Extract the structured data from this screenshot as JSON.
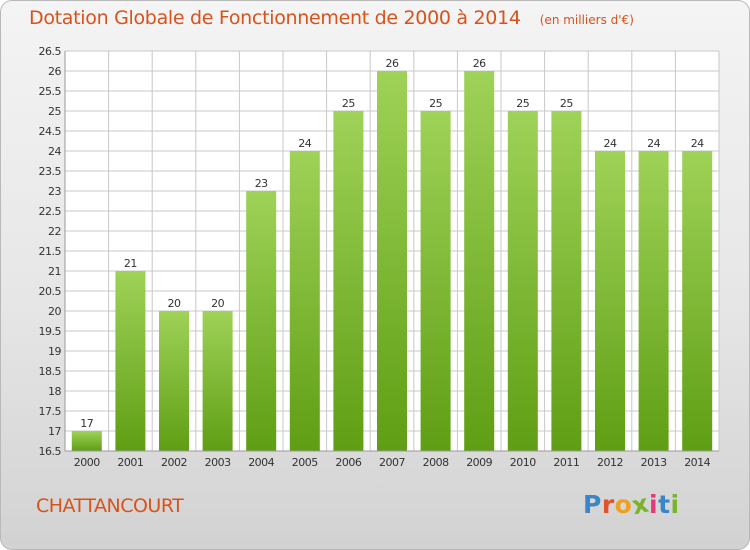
{
  "title": "Dotation Globale de Fonctionnement de 2000 à 2014",
  "subtitle": "(en milliers d'€)",
  "commune": "CHATTANCOURT",
  "logo": {
    "text": "Proxiti",
    "colors": [
      "#3a86c8",
      "#e0522a",
      "#f0a020",
      "#7ab32e",
      "#e23a7a",
      "#3a86c8",
      "#7ab32e"
    ]
  },
  "colors": {
    "title": "#d8531b",
    "bar_light": "#9fd258",
    "bar_dark": "#5f9e14",
    "grid": "#c8c8c8",
    "axis_text": "#333333"
  },
  "chart_data": {
    "type": "bar",
    "categories": [
      "2000",
      "2001",
      "2002",
      "2003",
      "2004",
      "2005",
      "2006",
      "2007",
      "2008",
      "2009",
      "2010",
      "2011",
      "2012",
      "2013",
      "2014"
    ],
    "values": [
      17,
      21,
      20,
      20,
      23,
      24,
      25,
      26,
      25,
      26,
      25,
      25,
      24,
      24,
      24
    ],
    "data_labels": [
      "17",
      "21",
      "20",
      "20",
      "23",
      "24",
      "25",
      "26",
      "25",
      "26",
      "25",
      "25",
      "24",
      "24",
      "24"
    ],
    "yticks": [
      "16.5",
      "17",
      "17.5",
      "18",
      "18.5",
      "19",
      "19.5",
      "20",
      "20.5",
      "21",
      "21.5",
      "22",
      "22.5",
      "23",
      "23.5",
      "24",
      "24.5",
      "25",
      "25.5",
      "26",
      "26.5"
    ],
    "ylim": [
      16.5,
      26.5
    ],
    "grid": true,
    "xlabel": "",
    "ylabel": ""
  }
}
